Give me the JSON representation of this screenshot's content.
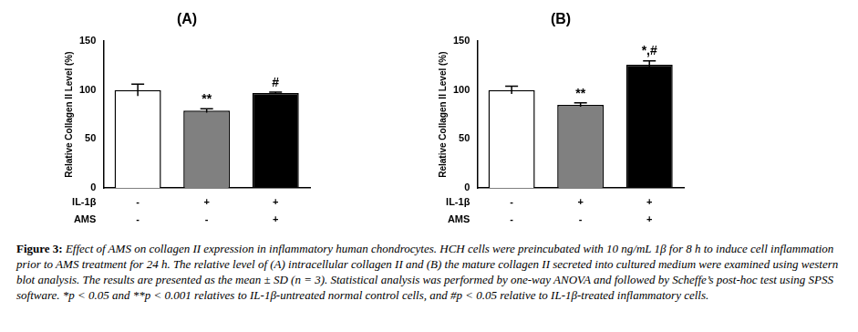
{
  "chart_data": [
    {
      "type": "bar",
      "title": "(A)",
      "y_label": "Relative Collagen II Level (%)",
      "categories": [
        null,
        null,
        null
      ],
      "values": [
        100,
        79,
        97
      ],
      "errors": [
        6,
        2,
        1
      ],
      "colors": [
        "#ffffff",
        "#808080",
        "#000000"
      ],
      "annotations": [
        null,
        "**",
        "#"
      ],
      "conditions": [
        {
          "name": "IL-1β",
          "values": [
            "-",
            "+",
            "+"
          ]
        },
        {
          "name": "AMS",
          "values": [
            "-",
            "-",
            "+"
          ]
        }
      ],
      "ylim": [
        0,
        150
      ],
      "yticks": [
        0,
        50,
        100,
        150
      ],
      "grid": false,
      "tick_labels": "y"
    },
    {
      "type": "bar",
      "title": "(B)",
      "y_label": "Relative Collagen II Level (%)",
      "categories": [
        null,
        null,
        null
      ],
      "values": [
        100,
        85,
        126
      ],
      "errors": [
        4,
        2,
        4
      ],
      "colors": [
        "#ffffff",
        "#808080",
        "#000000"
      ],
      "annotations": [
        null,
        "**",
        "*,#"
      ],
      "conditions": [
        {
          "name": "IL-1β",
          "values": [
            "-",
            "+",
            "+"
          ]
        },
        {
          "name": "AMS",
          "values": [
            "-",
            "-",
            "+"
          ]
        }
      ],
      "ylim": [
        0,
        150
      ],
      "yticks": [
        0,
        50,
        100,
        150
      ],
      "grid": false,
      "tick_labels": "y"
    }
  ],
  "caption": {
    "label": "Figure 3:",
    "text": "Effect of AMS on collagen II expression in inflammatory human chondrocytes. HCH cells were preincubated with 10 ng/mL 1β for 8 h to induce cell inflammation prior to AMS treatment for 24 h. The relative level of (A) intracellular collagen II and (B) the mature collagen II secreted into cultured medium were examined using western blot analysis. The results are presented as the mean ± SD (n = 3). Statistical analysis was performed by one-way ANOVA and followed by Scheffe’s post-hoc test using SPSS software. *p < 0.05 and **p < 0.001 relatives to IL-1β-untreated normal control cells, and #p < 0.05 relative to IL-1β-treated inflammatory cells."
  }
}
